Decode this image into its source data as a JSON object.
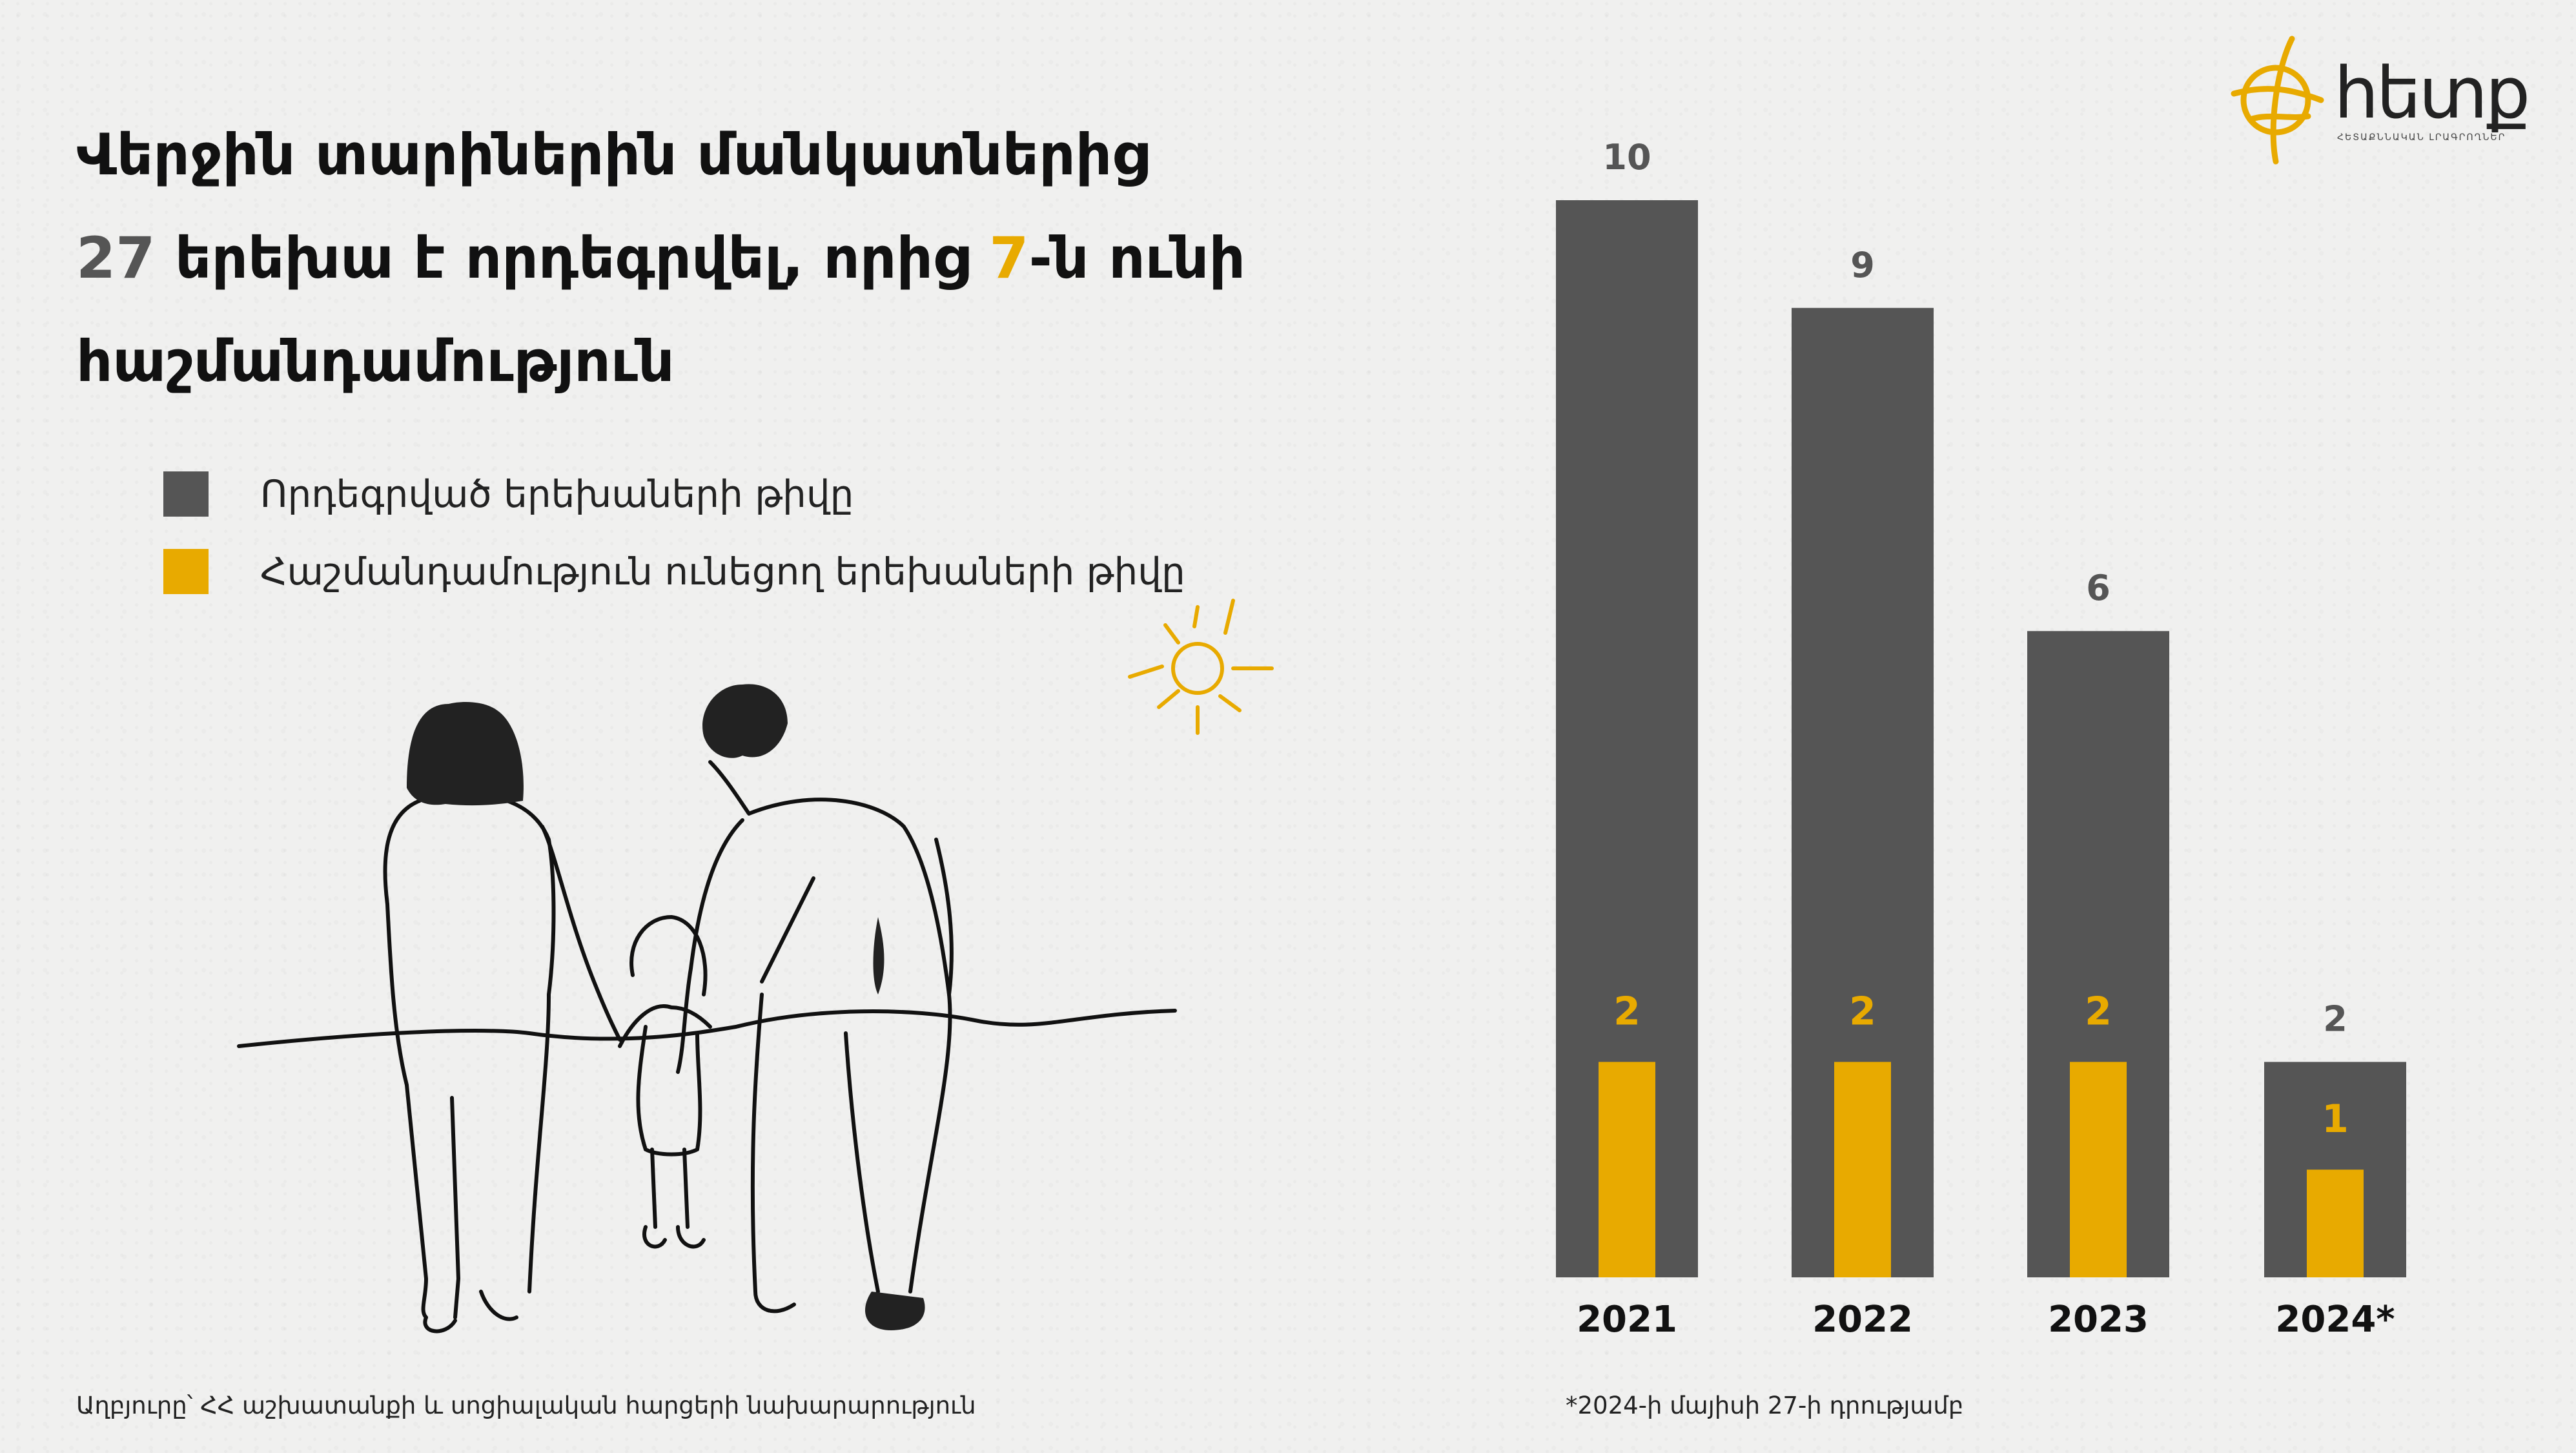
{
  "headline": {
    "line1": "Վերջին տարիներին մանկատներից",
    "num_total": "27",
    "line2_mid": " երեխա է որդեգրվել, որից ",
    "num_disabled": "7",
    "line2_end": "-ն ունի",
    "line3": "հաշմանդամություն"
  },
  "legend": {
    "adopted": "Որդեգրված երեխաների թիվը",
    "disabled": "Հաշմանդամություն ունեցող երեխաների թիվը"
  },
  "footer": {
    "source": "Աղբյուրը՝ ՀՀ աշխատանքի և սոցիալական հարցերի նախարարություն",
    "note": "*2024-ի մայիսի 27-ի դրությամբ"
  },
  "logo": {
    "name": "հետք",
    "tagline": "ՀԵՏԱՔՆՆԱԿԱՆ ԼՐԱԳՐՈՂՆԵՐ"
  },
  "colors": {
    "adopted": "#555555",
    "disabled": "#e8aa00",
    "background": "#f0f0ef"
  },
  "icons": [
    "family-illustration",
    "sun-icon",
    "logo-icon"
  ],
  "chart_data": {
    "type": "bar",
    "categories": [
      "2021",
      "2022",
      "2023",
      "2024*"
    ],
    "series": [
      {
        "name": "Որդեգրված երեխաների թիվը",
        "values": [
          10,
          9,
          6,
          2
        ]
      },
      {
        "name": "Հաշմանդամություն ունեցող երեխաների թիվը",
        "values": [
          2,
          2,
          2,
          1
        ]
      }
    ],
    "ylim": [
      0,
      10
    ],
    "grid": false,
    "legend": "top-left"
  }
}
